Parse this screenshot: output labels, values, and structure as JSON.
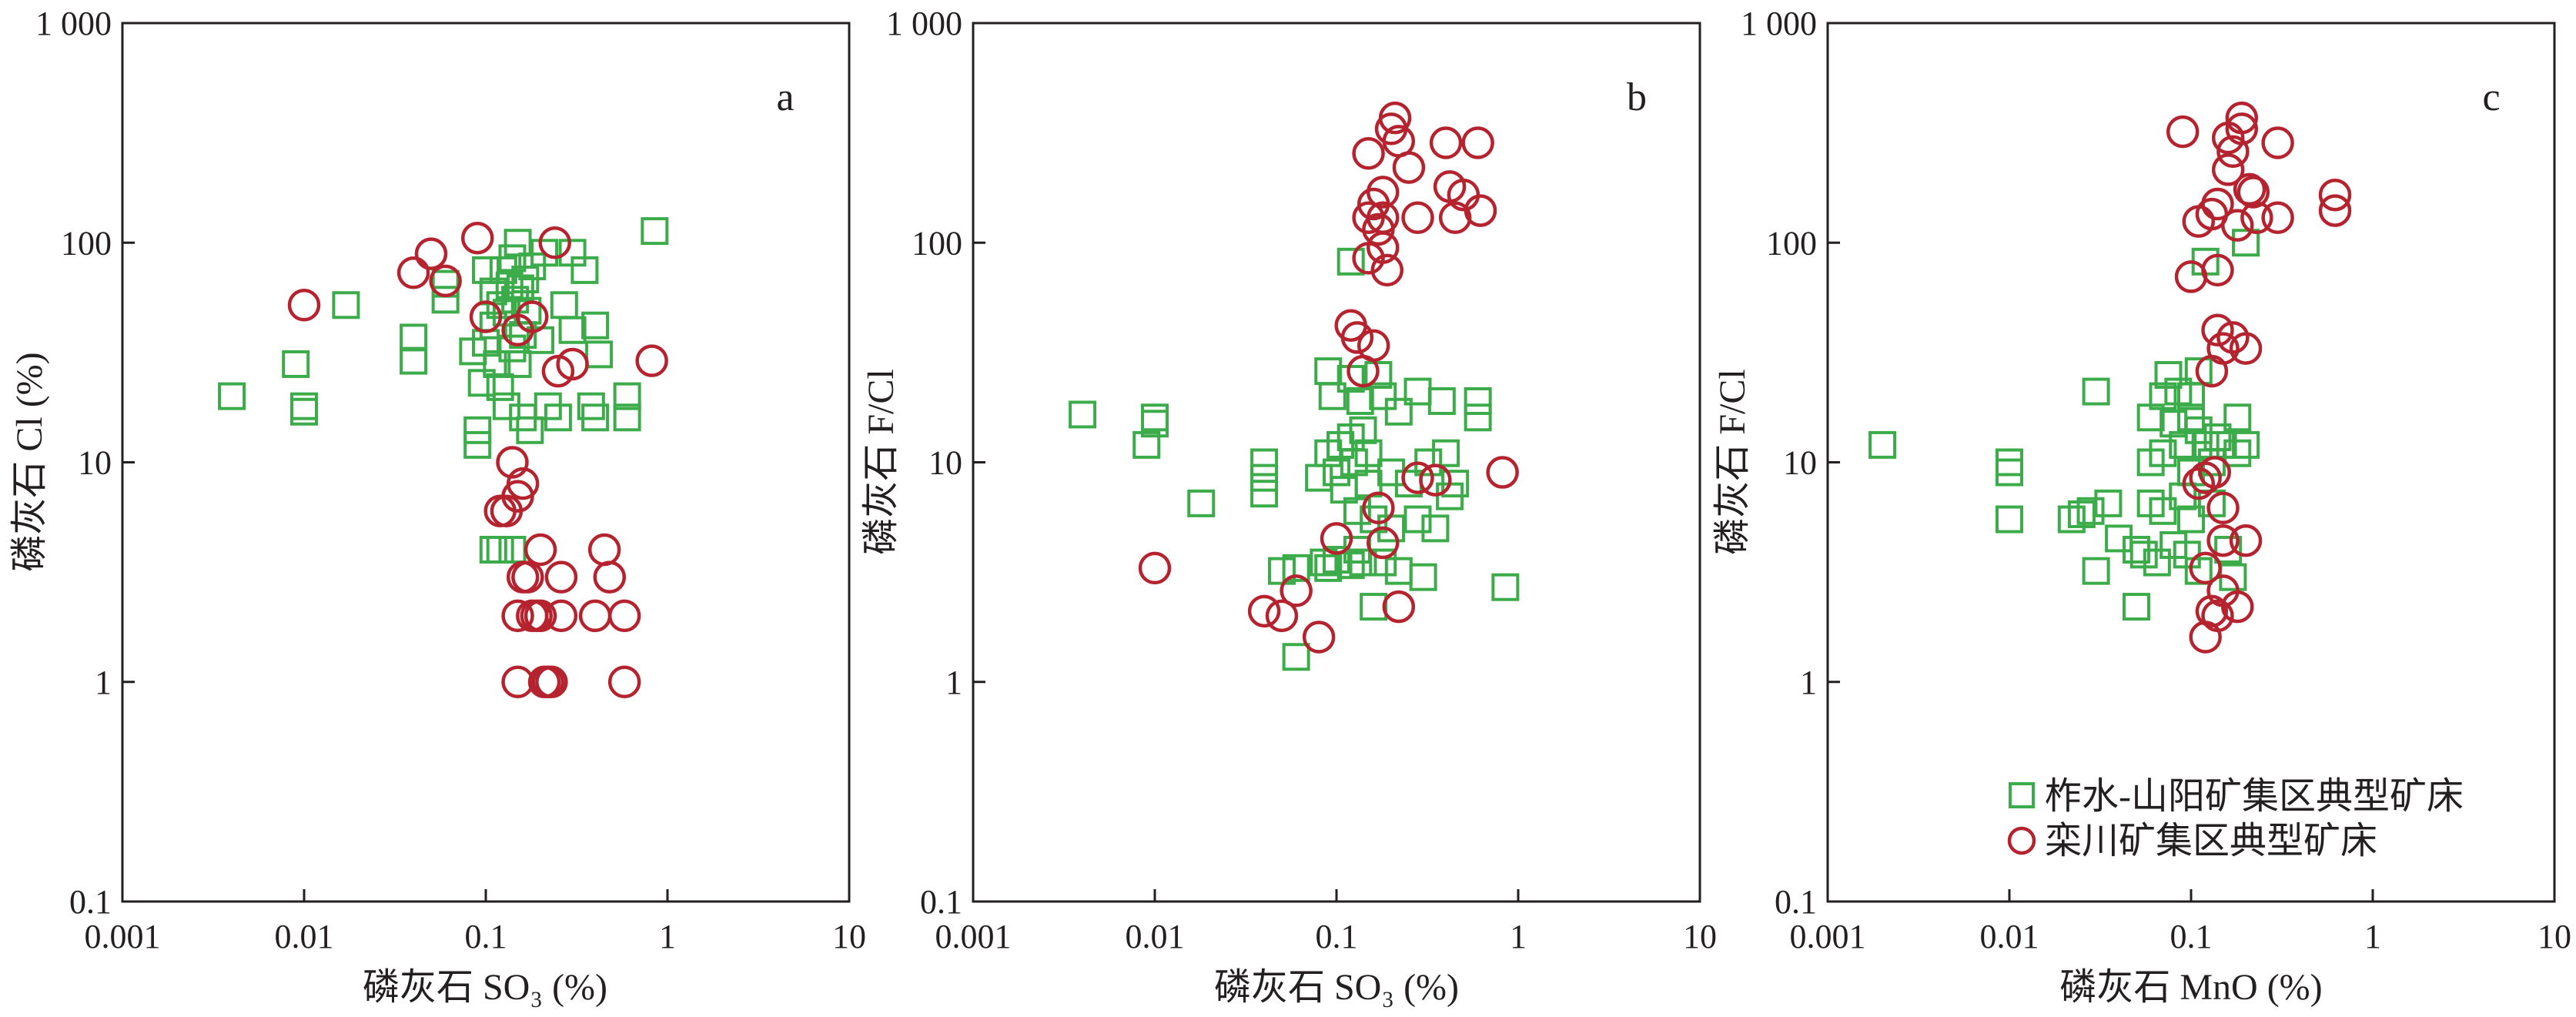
{
  "legend": {
    "series_a": "柞水-山阳矿集区典型矿床",
    "series_b": "栾川矿集区典型矿床",
    "color_a": "#3cab4a",
    "color_b": "#b5232f"
  },
  "chart_data": [
    {
      "type": "scatter",
      "panel": "a",
      "xlabel": "磷灰石 SO₃ (%)",
      "ylabel": "磷灰石 Cl (%)",
      "xscale": "log",
      "yscale": "log",
      "xlim": [
        0.001,
        10
      ],
      "ylim": [
        0.1,
        1000
      ],
      "xticks": [
        "0.001",
        "0.01",
        "0.1",
        "1",
        "10"
      ],
      "yticks": [
        "0.1",
        "1",
        "10",
        "100",
        "1 000"
      ],
      "series": [
        {
          "marker": "square",
          "color": "#3cab4a",
          "points": [
            [
              0.004,
              20
            ],
            [
              0.009,
              28
            ],
            [
              0.01,
              18
            ],
            [
              0.01,
              17
            ],
            [
              0.017,
              52
            ],
            [
              0.04,
              37
            ],
            [
              0.04,
              29
            ],
            [
              0.06,
              55
            ],
            [
              0.06,
              65
            ],
            [
              0.085,
              32
            ],
            [
              0.09,
              14
            ],
            [
              0.09,
              12
            ],
            [
              0.095,
              23
            ],
            [
              0.1,
              35
            ],
            [
              0.1,
              75
            ],
            [
              0.11,
              60
            ],
            [
              0.11,
              42
            ],
            [
              0.115,
              28
            ],
            [
              0.12,
              52
            ],
            [
              0.12,
              22
            ],
            [
              0.125,
              75
            ],
            [
              0.13,
              48
            ],
            [
              0.13,
              18
            ],
            [
              0.135,
              64
            ],
            [
              0.14,
              33
            ],
            [
              0.14,
              85
            ],
            [
              0.145,
              55
            ],
            [
              0.15,
              100
            ],
            [
              0.15,
              28
            ],
            [
              0.155,
              62
            ],
            [
              0.16,
              38
            ],
            [
              0.16,
              16
            ],
            [
              0.165,
              68
            ],
            [
              0.17,
              49
            ],
            [
              0.175,
              14
            ],
            [
              0.18,
              78
            ],
            [
              0.2,
              36
            ],
            [
              0.21,
              90
            ],
            [
              0.22,
              18
            ],
            [
              0.25,
              16
            ],
            [
              0.27,
              52
            ],
            [
              0.3,
              40
            ],
            [
              0.3,
              90
            ],
            [
              0.35,
              75
            ],
            [
              0.38,
              18
            ],
            [
              0.4,
              16
            ],
            [
              0.4,
              42
            ],
            [
              0.42,
              31
            ],
            [
              0.6,
              20
            ],
            [
              0.6,
              16
            ],
            [
              0.85,
              113
            ],
            [
              0.11,
              4
            ],
            [
              0.12,
              4
            ],
            [
              0.14,
              4
            ]
          ]
        },
        {
          "marker": "circle",
          "color": "#b5232f",
          "points": [
            [
              0.01,
              52
            ],
            [
              0.04,
              73
            ],
            [
              0.05,
              89
            ],
            [
              0.06,
              67
            ],
            [
              0.09,
              105
            ],
            [
              0.1,
              46
            ],
            [
              0.12,
              6
            ],
            [
              0.13,
              6
            ],
            [
              0.14,
              10
            ],
            [
              0.15,
              40
            ],
            [
              0.15,
              7
            ],
            [
              0.16,
              8
            ],
            [
              0.16,
              3
            ],
            [
              0.17,
              3
            ],
            [
              0.15,
              2
            ],
            [
              0.15,
              1
            ],
            [
              0.18,
              46
            ],
            [
              0.18,
              2
            ],
            [
              0.19,
              2
            ],
            [
              0.2,
              4
            ],
            [
              0.2,
              2
            ],
            [
              0.21,
              1
            ],
            [
              0.22,
              1
            ],
            [
              0.23,
              1
            ],
            [
              0.24,
              100
            ],
            [
              0.25,
              26
            ],
            [
              0.26,
              3
            ],
            [
              0.26,
              2
            ],
            [
              0.3,
              28
            ],
            [
              0.4,
              2
            ],
            [
              0.45,
              4
            ],
            [
              0.48,
              3
            ],
            [
              0.58,
              2
            ],
            [
              0.58,
              1
            ],
            [
              0.82,
              29
            ]
          ]
        }
      ]
    },
    {
      "type": "scatter",
      "panel": "b",
      "xlabel": "磷灰石 SO₃ (%)",
      "ylabel": "磷灰石 F/Cl",
      "xscale": "log",
      "yscale": "log",
      "xlim": [
        0.001,
        10
      ],
      "ylim": [
        0.1,
        1000
      ],
      "xticks": [
        "0.001",
        "0.01",
        "0.1",
        "1",
        "10"
      ],
      "yticks": [
        "0.1",
        "1",
        "10",
        "100",
        "1 000"
      ],
      "series": [
        {
          "marker": "square",
          "color": "#3cab4a",
          "points": [
            [
              0.004,
              16.5
            ],
            [
              0.009,
              12
            ],
            [
              0.01,
              16
            ],
            [
              0.01,
              15
            ],
            [
              0.018,
              6.5
            ],
            [
              0.04,
              10
            ],
            [
              0.04,
              8.5
            ],
            [
              0.04,
              7.2
            ],
            [
              0.05,
              3.2
            ],
            [
              0.06,
              3.3
            ],
            [
              0.06,
              1.3
            ],
            [
              0.08,
              8.5
            ],
            [
              0.085,
              3.5
            ],
            [
              0.09,
              26
            ],
            [
              0.09,
              11
            ],
            [
              0.09,
              3.3
            ],
            [
              0.095,
              20
            ],
            [
              0.1,
              9
            ],
            [
              0.1,
              3.6
            ],
            [
              0.105,
              12
            ],
            [
              0.11,
              7.5
            ],
            [
              0.12,
              82
            ],
            [
              0.12,
              24
            ],
            [
              0.12,
              13
            ],
            [
              0.12,
              3.4
            ],
            [
              0.125,
              10
            ],
            [
              0.13,
              6
            ],
            [
              0.13,
              4
            ],
            [
              0.135,
              19
            ],
            [
              0.14,
              14
            ],
            [
              0.14,
              3.5
            ],
            [
              0.15,
              11
            ],
            [
              0.15,
              8
            ],
            [
              0.16,
              5.5
            ],
            [
              0.16,
              2.2
            ],
            [
              0.17,
              25
            ],
            [
              0.18,
              20
            ],
            [
              0.18,
              3.5
            ],
            [
              0.2,
              9
            ],
            [
              0.2,
              5
            ],
            [
              0.22,
              17
            ],
            [
              0.22,
              3.2
            ],
            [
              0.25,
              8
            ],
            [
              0.28,
              21
            ],
            [
              0.28,
              5.5
            ],
            [
              0.3,
              3
            ],
            [
              0.32,
              10
            ],
            [
              0.35,
              5
            ],
            [
              0.38,
              19
            ],
            [
              0.4,
              11
            ],
            [
              0.42,
              7
            ],
            [
              0.45,
              8
            ],
            [
              0.6,
              19
            ],
            [
              0.6,
              16
            ],
            [
              0.85,
              2.7
            ]
          ]
        },
        {
          "marker": "circle",
          "color": "#b5232f",
          "points": [
            [
              0.01,
              3.3
            ],
            [
              0.04,
              2.1
            ],
            [
              0.05,
              2
            ],
            [
              0.06,
              2.6
            ],
            [
              0.08,
              1.6
            ],
            [
              0.1,
              4.5
            ],
            [
              0.12,
              42
            ],
            [
              0.13,
              37
            ],
            [
              0.14,
              26
            ],
            [
              0.15,
              255
            ],
            [
              0.15,
              130
            ],
            [
              0.15,
              85
            ],
            [
              0.16,
              150
            ],
            [
              0.16,
              34
            ],
            [
              0.17,
              6.2
            ],
            [
              0.17,
              115
            ],
            [
              0.18,
              130
            ],
            [
              0.18,
              95
            ],
            [
              0.18,
              170
            ],
            [
              0.18,
              4.3
            ],
            [
              0.19,
              75
            ],
            [
              0.2,
              330
            ],
            [
              0.21,
              370
            ],
            [
              0.22,
              290
            ],
            [
              0.22,
              2.2
            ],
            [
              0.25,
              220
            ],
            [
              0.28,
              8.5
            ],
            [
              0.28,
              130
            ],
            [
              0.35,
              8.3
            ],
            [
              0.4,
              285
            ],
            [
              0.42,
              180
            ],
            [
              0.45,
              130
            ],
            [
              0.5,
              165
            ],
            [
              0.6,
              285
            ],
            [
              0.62,
              140
            ],
            [
              0.82,
              9
            ]
          ]
        }
      ]
    },
    {
      "type": "scatter",
      "panel": "c",
      "xlabel": "磷灰石 MnO (%)",
      "ylabel": "磷灰石 F/Cl",
      "xscale": "log",
      "yscale": "log",
      "xlim": [
        0.001,
        10
      ],
      "ylim": [
        0.1,
        1000
      ],
      "xticks": [
        "0.001",
        "0.01",
        "0.1",
        "1",
        "10"
      ],
      "yticks": [
        "0.1",
        "1",
        "10",
        "100",
        "1 000"
      ],
      "legend_position": "bottom-right",
      "series": [
        {
          "marker": "square",
          "color": "#3cab4a",
          "points": [
            [
              0.002,
              12
            ],
            [
              0.01,
              10
            ],
            [
              0.01,
              9
            ],
            [
              0.01,
              5.5
            ],
            [
              0.022,
              5.5
            ],
            [
              0.025,
              5.8
            ],
            [
              0.028,
              6
            ],
            [
              0.03,
              21
            ],
            [
              0.03,
              3.2
            ],
            [
              0.035,
              6.5
            ],
            [
              0.04,
              4.5
            ],
            [
              0.05,
              4
            ],
            [
              0.05,
              2.2
            ],
            [
              0.055,
              3.8
            ],
            [
              0.06,
              16
            ],
            [
              0.06,
              10
            ],
            [
              0.06,
              6.5
            ],
            [
              0.065,
              3.5
            ],
            [
              0.07,
              20
            ],
            [
              0.07,
              11
            ],
            [
              0.07,
              6
            ],
            [
              0.075,
              25
            ],
            [
              0.08,
              15
            ],
            [
              0.08,
              4.2
            ],
            [
              0.085,
              21
            ],
            [
              0.09,
              12
            ],
            [
              0.09,
              7
            ],
            [
              0.095,
              3.8
            ],
            [
              0.1,
              20
            ],
            [
              0.1,
              16
            ],
            [
              0.1,
              9
            ],
            [
              0.1,
              5.5
            ],
            [
              0.11,
              26
            ],
            [
              0.11,
              14
            ],
            [
              0.11,
              3.2
            ],
            [
              0.12,
              82
            ],
            [
              0.12,
              12
            ],
            [
              0.13,
              10
            ],
            [
              0.13,
              6.5
            ],
            [
              0.14,
              13
            ],
            [
              0.15,
              12
            ],
            [
              0.16,
              4
            ],
            [
              0.17,
              3
            ],
            [
              0.18,
              11
            ],
            [
              0.18,
              16
            ],
            [
              0.2,
              100
            ],
            [
              0.2,
              12
            ]
          ]
        },
        {
          "marker": "circle",
          "color": "#b5232f",
          "points": [
            [
              0.09,
              320
            ],
            [
              0.1,
              70
            ],
            [
              0.11,
              8
            ],
            [
              0.11,
              125
            ],
            [
              0.12,
              8.5
            ],
            [
              0.12,
              3.3
            ],
            [
              0.12,
              1.6
            ],
            [
              0.13,
              135
            ],
            [
              0.13,
              26
            ],
            [
              0.13,
              2.1
            ],
            [
              0.135,
              9
            ],
            [
              0.14,
              40
            ],
            [
              0.14,
              2
            ],
            [
              0.14,
              75
            ],
            [
              0.14,
              150
            ],
            [
              0.15,
              33
            ],
            [
              0.15,
              6.2
            ],
            [
              0.15,
              4.4
            ],
            [
              0.15,
              2.6
            ],
            [
              0.16,
              215
            ],
            [
              0.16,
              300
            ],
            [
              0.17,
              260
            ],
            [
              0.17,
              37
            ],
            [
              0.18,
              2.2
            ],
            [
              0.18,
              120
            ],
            [
              0.19,
              370
            ],
            [
              0.19,
              330
            ],
            [
              0.2,
              4.4
            ],
            [
              0.2,
              33
            ],
            [
              0.21,
              175
            ],
            [
              0.22,
              170
            ],
            [
              0.23,
              130
            ],
            [
              0.3,
              285
            ],
            [
              0.3,
              130
            ],
            [
              0.62,
              140
            ],
            [
              0.62,
              165
            ]
          ]
        }
      ]
    }
  ]
}
